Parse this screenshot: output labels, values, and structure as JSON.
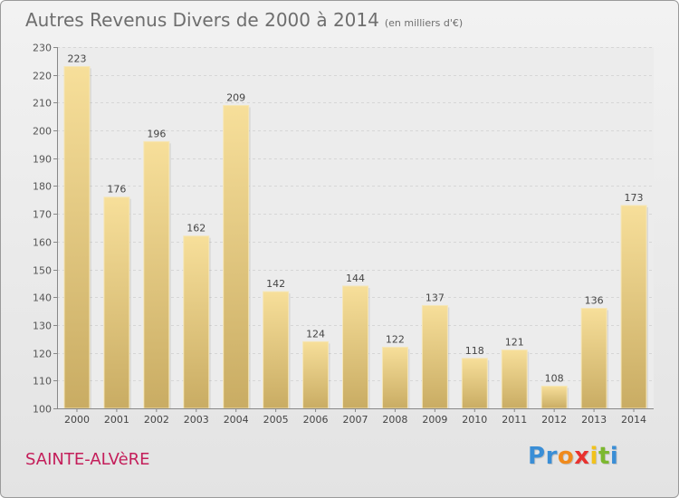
{
  "header": {
    "title": "Autres Revenus Divers de 2000 à 2014",
    "subtitle": "(en milliers d'€)"
  },
  "commune": "SAINTE-ALVèRE",
  "logo": {
    "letters": [
      "P",
      "r",
      "o",
      "x",
      "i",
      "t",
      "i"
    ],
    "colors": [
      "#3a8ed6",
      "#3a8ed6",
      "#f08a1c",
      "#e8322f",
      "#f2c21b",
      "#7cb82f",
      "#3a8ed6"
    ]
  },
  "chart_data": {
    "type": "bar",
    "title": "Autres Revenus Divers de 2000 à 2014",
    "subtitle": "(en milliers d'€)",
    "categories": [
      "2000",
      "2001",
      "2002",
      "2003",
      "2004",
      "2005",
      "2006",
      "2007",
      "2008",
      "2009",
      "2010",
      "2011",
      "2012",
      "2013",
      "2014"
    ],
    "values": [
      223,
      176,
      196,
      162,
      209,
      142,
      124,
      144,
      122,
      137,
      118,
      121,
      108,
      136,
      173
    ],
    "ylim": [
      100,
      230
    ],
    "yticks": [
      100,
      110,
      120,
      130,
      140,
      150,
      160,
      170,
      180,
      190,
      200,
      210,
      220,
      230
    ],
    "grid": true,
    "xlabel": "",
    "ylabel": "",
    "bar_color_top": "#f7df9a",
    "bar_color_bottom": "#c9ac63"
  }
}
